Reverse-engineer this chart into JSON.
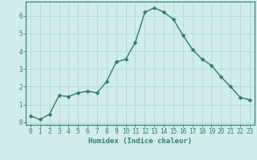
{
  "x": [
    0,
    1,
    2,
    3,
    4,
    5,
    6,
    7,
    8,
    9,
    10,
    11,
    12,
    13,
    14,
    15,
    16,
    17,
    18,
    19,
    20,
    21,
    22,
    23
  ],
  "y": [
    0.35,
    0.15,
    0.45,
    1.5,
    1.45,
    1.65,
    1.75,
    1.65,
    2.3,
    3.4,
    3.55,
    4.5,
    6.2,
    6.45,
    6.2,
    5.8,
    4.9,
    4.1,
    3.55,
    3.2,
    2.55,
    2.0,
    1.4,
    1.25
  ],
  "line_color": "#2e7d6e",
  "marker": "D",
  "marker_size": 2.5,
  "bg_color": "#d0ecec",
  "grid_color": "#b0d4d4",
  "axis_color": "#2e7d6e",
  "xlabel": "Humidex (Indice chaleur)",
  "ylim": [
    -0.15,
    6.8
  ],
  "xlim": [
    -0.5,
    23.5
  ],
  "yticks": [
    0,
    1,
    2,
    3,
    4,
    5,
    6
  ],
  "xticks": [
    0,
    1,
    2,
    3,
    4,
    5,
    6,
    7,
    8,
    9,
    10,
    11,
    12,
    13,
    14,
    15,
    16,
    17,
    18,
    19,
    20,
    21,
    22,
    23
  ],
  "tick_font_size": 5.5,
  "label_font_size": 6.5,
  "linewidth": 1.0,
  "grid_linewidth": 0.5
}
